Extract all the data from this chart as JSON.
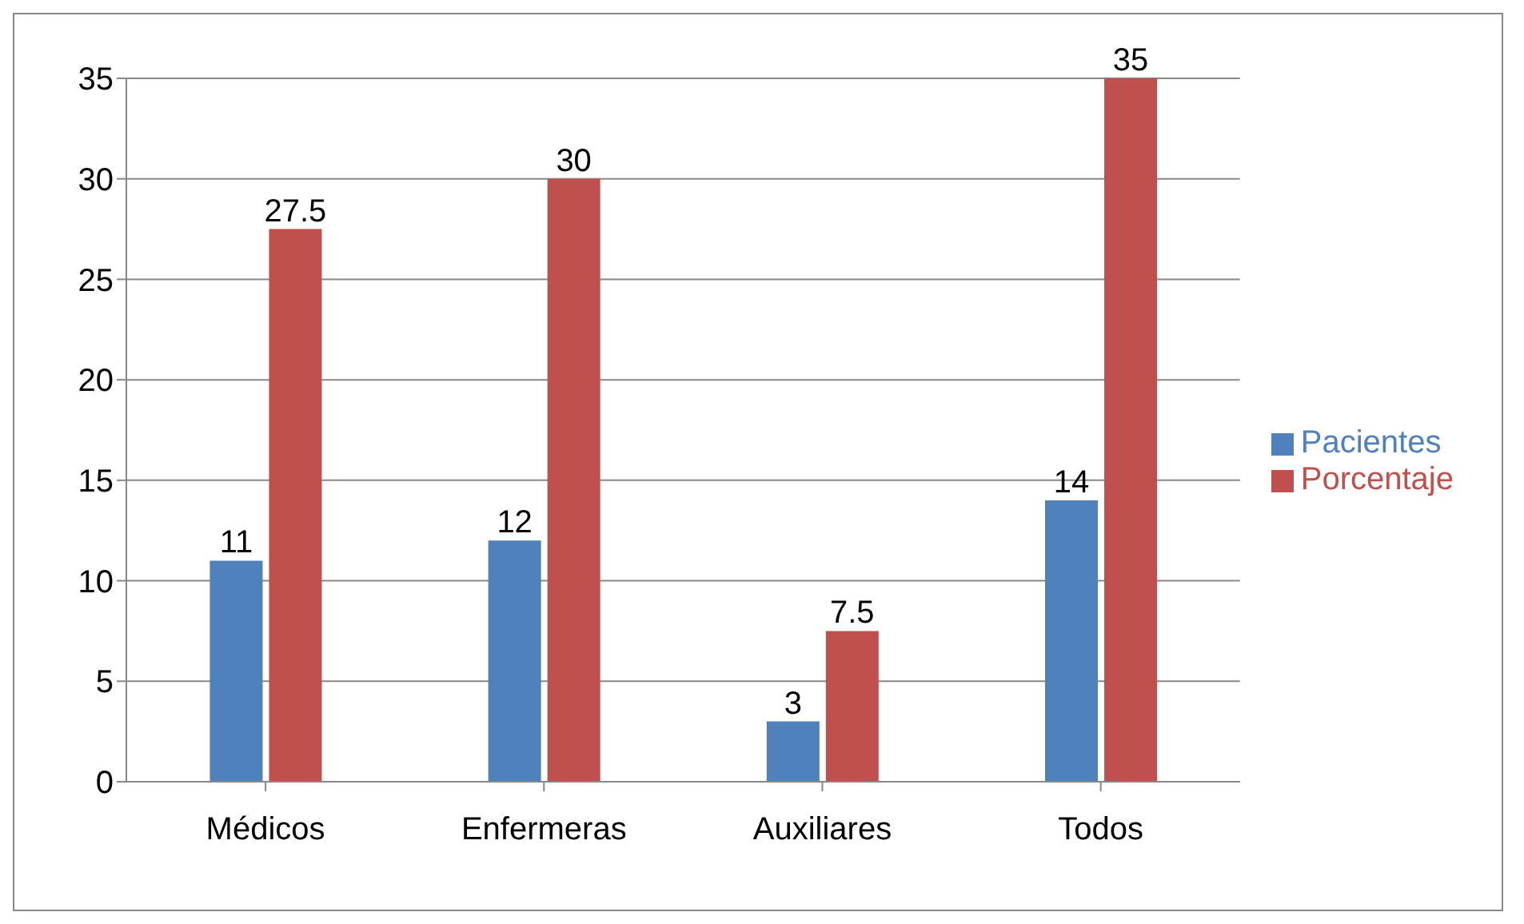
{
  "chart_data": {
    "type": "bar",
    "categories": [
      "Médicos",
      "Enfermeras",
      "Auxiliares",
      "Todos"
    ],
    "series": [
      {
        "name": "Pacientes",
        "color": "#4f81bd",
        "values": [
          11,
          12,
          3,
          14
        ]
      },
      {
        "name": "Porcentaje",
        "color": "#c0504d",
        "values": [
          27.5,
          30,
          7.5,
          35
        ]
      }
    ],
    "ylim": [
      0,
      35
    ],
    "yticks": [
      0,
      5,
      10,
      15,
      20,
      25,
      30,
      35
    ],
    "grid": "y",
    "legend": "right",
    "data_labels": true
  }
}
